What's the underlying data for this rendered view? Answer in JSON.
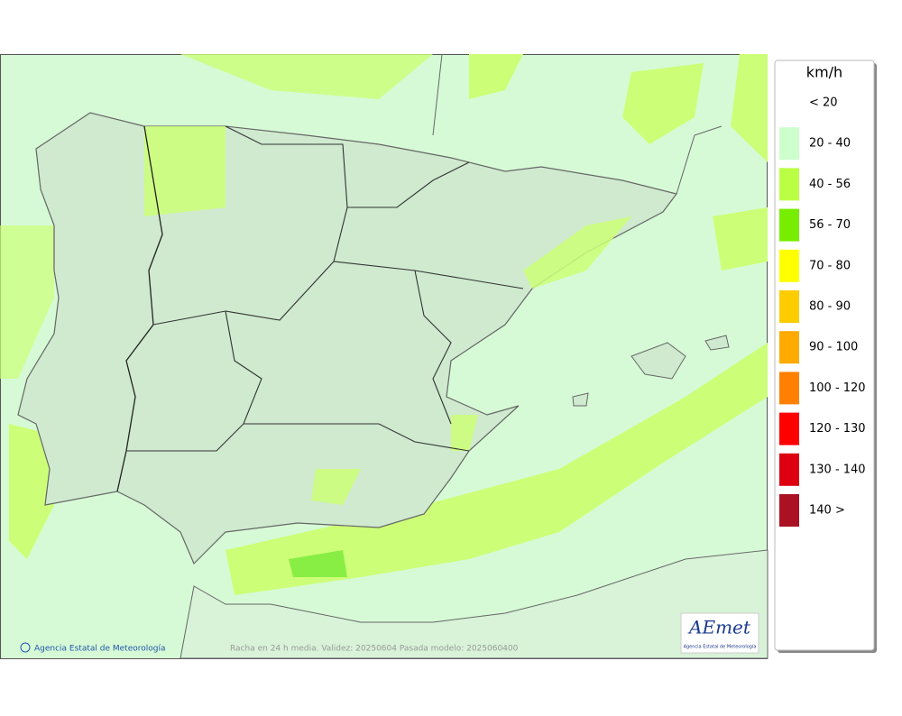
{
  "legend": {
    "title": "km/h",
    "items": [
      {
        "label": "< 20"
      },
      {
        "label": "20 - 40",
        "color": "#ccffcc"
      },
      {
        "label": "40 - 56",
        "color": "#bbff44"
      },
      {
        "label": "56 - 70",
        "color": "#77ee00"
      },
      {
        "label": "70 - 80",
        "color": "#ffff00"
      },
      {
        "label": "80 - 90",
        "color": "#ffcc00"
      },
      {
        "label": "90 - 100",
        "color": "#ffaa00"
      },
      {
        "label": "100 - 120",
        "color": "#ff8000"
      },
      {
        "label": "120 - 130",
        "color": "#ff0000"
      },
      {
        "label": "130 - 140",
        "color": "#dd0011"
      },
      {
        "label": "140 >",
        "color": "#aa1122"
      }
    ]
  },
  "footer": {
    "credit": "Agencia Estatal de Meteorología",
    "caption": "Racha en 24 h media. Validez: 20250604 Pasada modelo: 2025060400"
  },
  "logo": {
    "name": "AEmet",
    "subtitle": "Agencia Estatal de Meteorología"
  }
}
